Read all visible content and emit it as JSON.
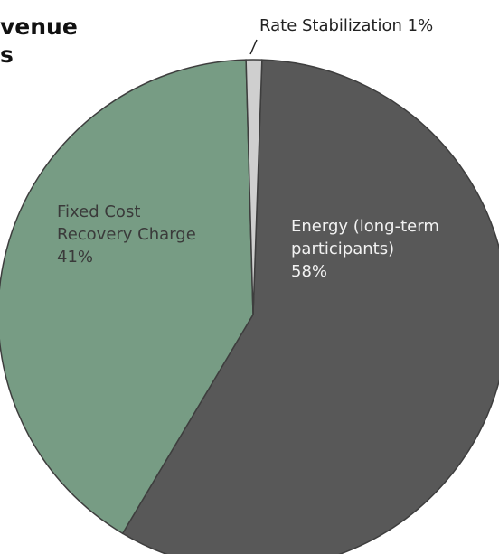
{
  "chart_data": {
    "type": "pie",
    "title_lines": [
      "venue",
      "s"
    ],
    "slices": [
      {
        "label_lines": [
          "Energy (long-term",
          "participants)"
        ],
        "value": 58,
        "value_label": "58%",
        "color": "#585858",
        "label_color": "#f2f2f2"
      },
      {
        "label_lines": [
          "Fixed Cost",
          "Recovery Charge"
        ],
        "value": 41,
        "value_label": "41%",
        "color": "#779c84",
        "label_color": "#3a3a3a"
      },
      {
        "label_lines": [
          "Rate Stabilization 1%"
        ],
        "value": 1,
        "value_label": "",
        "color": "#cfcfcf",
        "label_color": "#222222"
      }
    ],
    "colors": {
      "edge": "#3e3e3e",
      "leader_line": "#222222"
    }
  }
}
